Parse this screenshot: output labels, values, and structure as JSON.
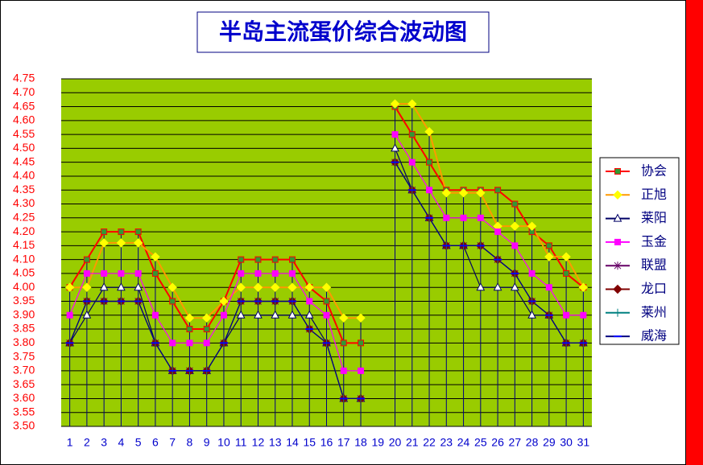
{
  "chart_data": {
    "type": "line",
    "title": "半岛主流蛋价综合波动图",
    "categories": [
      "1",
      "2",
      "3",
      "4",
      "5",
      "6",
      "7",
      "8",
      "9",
      "10",
      "11",
      "12",
      "13",
      "14",
      "15",
      "16",
      "17",
      "18",
      "19",
      "20",
      "21",
      "22",
      "23",
      "24",
      "25",
      "26",
      "27",
      "28",
      "29",
      "30",
      "31"
    ],
    "ylim": [
      3.5,
      4.75
    ],
    "yticks": [
      {
        "value": 3.5,
        "label": "3.50"
      },
      {
        "value": 3.55,
        "label": "3.55"
      },
      {
        "value": 3.6,
        "label": "3.60"
      },
      {
        "value": 3.65,
        "label": "3.65"
      },
      {
        "value": 3.7,
        "label": "3.70"
      },
      {
        "value": 3.75,
        "label": "3.75"
      },
      {
        "value": 3.8,
        "label": "3.80"
      },
      {
        "value": 3.85,
        "label": "3.85"
      },
      {
        "value": 3.9,
        "label": "3.90"
      },
      {
        "value": 3.95,
        "label": "3.95"
      },
      {
        "value": 4.0,
        "label": "4.00"
      },
      {
        "value": 4.05,
        "label": "4.05"
      },
      {
        "value": 4.1,
        "label": "4.10"
      },
      {
        "value": 4.15,
        "label": "4.15"
      },
      {
        "value": 4.2,
        "label": "4.20"
      },
      {
        "value": 4.25,
        "label": "4.25"
      },
      {
        "value": 4.3,
        "label": "4.30"
      },
      {
        "value": 4.35,
        "label": "4.35"
      },
      {
        "value": 4.4,
        "label": "4.40"
      },
      {
        "value": 4.45,
        "label": "4.45"
      },
      {
        "value": 4.5,
        "label": "4.50"
      },
      {
        "value": 4.55,
        "label": "4.55"
      },
      {
        "value": 4.6,
        "label": "4.60"
      },
      {
        "value": 4.65,
        "label": "4.65"
      },
      {
        "value": 4.7,
        "label": "4.70"
      },
      {
        "value": 4.75,
        "label": "4.75"
      }
    ],
    "grid": true,
    "plot_color": "#99cc00",
    "legend": "right",
    "series": [
      {
        "name": "协会",
        "color": "#ff0000",
        "marker": "square",
        "marker_color": "#339933",
        "values": [
          4.0,
          4.1,
          4.2,
          4.2,
          4.2,
          4.05,
          3.95,
          3.85,
          3.85,
          3.95,
          4.1,
          4.1,
          4.1,
          4.1,
          4.0,
          3.95,
          3.8,
          3.8,
          null,
          4.65,
          4.55,
          4.45,
          4.35,
          4.35,
          4.35,
          4.35,
          4.3,
          4.2,
          4.15,
          4.05,
          4.0
        ]
      },
      {
        "name": "正旭",
        "color": "#ff9900",
        "marker": "diamond",
        "marker_color": "#ffff00",
        "values": [
          4.0,
          4.0,
          4.16,
          4.16,
          4.16,
          4.11,
          4.0,
          3.89,
          3.89,
          3.95,
          4.0,
          4.0,
          4.0,
          4.0,
          4.0,
          4.0,
          3.89,
          3.89,
          null,
          4.66,
          4.66,
          4.56,
          4.34,
          4.34,
          4.34,
          4.22,
          4.22,
          4.22,
          4.11,
          4.11,
          4.0
        ]
      },
      {
        "name": "莱阳",
        "color": "#000066",
        "marker": "triangle",
        "marker_color": "#ffffff",
        "values": [
          3.8,
          3.9,
          4.0,
          4.0,
          4.0,
          3.8,
          3.7,
          3.7,
          3.7,
          3.8,
          3.9,
          3.9,
          3.9,
          3.9,
          3.9,
          3.8,
          3.6,
          3.6,
          null,
          4.5,
          4.35,
          4.25,
          4.15,
          4.15,
          4.0,
          4.0,
          4.0,
          3.9,
          3.9,
          3.8,
          3.8
        ]
      },
      {
        "name": "玉金",
        "color": "#ff00ff",
        "marker": "square",
        "marker_color": "#ff00ff",
        "values": [
          3.9,
          4.05,
          4.05,
          4.05,
          4.05,
          3.9,
          3.8,
          3.8,
          3.8,
          3.9,
          4.05,
          4.05,
          4.05,
          4.05,
          3.95,
          3.9,
          3.7,
          3.7,
          null,
          4.55,
          4.45,
          4.35,
          4.25,
          4.25,
          4.25,
          4.2,
          4.15,
          4.05,
          4.0,
          3.9,
          3.9
        ]
      },
      {
        "name": "联盟",
        "color": "#660066",
        "marker": "star",
        "marker_color": "#660066",
        "values": [
          3.8,
          3.95,
          3.95,
          3.95,
          3.95,
          3.8,
          3.7,
          3.7,
          3.7,
          3.8,
          3.95,
          3.95,
          3.95,
          3.95,
          3.85,
          3.8,
          3.6,
          3.6,
          null,
          4.45,
          4.35,
          4.25,
          4.15,
          4.15,
          4.15,
          4.1,
          4.05,
          3.95,
          3.9,
          3.8,
          3.8
        ]
      },
      {
        "name": "龙口",
        "color": "#800000",
        "marker": "diamond",
        "marker_color": "#800000",
        "values": [
          3.8,
          3.95,
          3.95,
          3.95,
          3.95,
          3.8,
          3.7,
          3.7,
          3.7,
          3.8,
          3.95,
          3.95,
          3.95,
          3.95,
          3.85,
          3.8,
          3.6,
          3.6,
          null,
          4.45,
          4.35,
          4.25,
          4.15,
          4.15,
          4.15,
          4.1,
          4.05,
          3.95,
          3.9,
          3.8,
          3.8
        ]
      },
      {
        "name": "莱州",
        "color": "#008080",
        "marker": "plus",
        "marker_color": "#008080",
        "values": [
          3.8,
          3.95,
          3.95,
          3.95,
          3.95,
          3.8,
          3.7,
          3.7,
          3.7,
          3.8,
          3.95,
          3.95,
          3.95,
          3.95,
          3.85,
          3.8,
          3.6,
          3.6,
          null,
          4.45,
          4.35,
          4.25,
          4.15,
          4.15,
          4.15,
          4.1,
          4.05,
          3.95,
          3.9,
          3.8,
          3.8
        ]
      },
      {
        "name": "威海",
        "color": "#000080",
        "marker": "dash",
        "marker_color": "#0000ff",
        "values": [
          3.8,
          3.95,
          3.95,
          3.95,
          3.95,
          3.8,
          3.7,
          3.7,
          3.7,
          3.8,
          3.95,
          3.95,
          3.95,
          3.95,
          3.85,
          3.8,
          3.6,
          3.6,
          null,
          4.45,
          4.35,
          4.25,
          4.15,
          4.15,
          4.15,
          4.1,
          4.05,
          3.95,
          3.9,
          3.8,
          3.8
        ]
      }
    ]
  }
}
